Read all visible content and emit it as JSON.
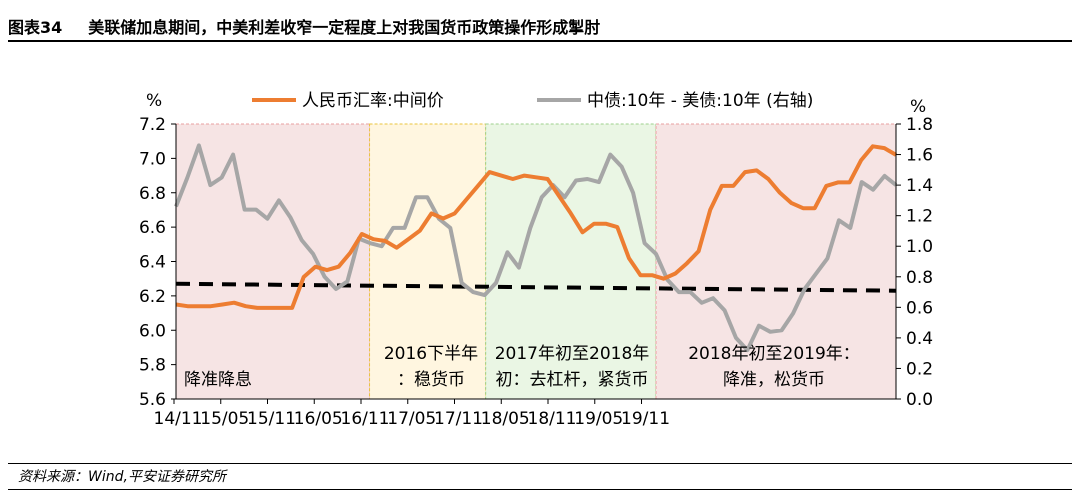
{
  "header": {
    "figure_label": "图表34",
    "title": "美联储加息期间，中美利差收窄一定程度上对我国货币政策操作形成掣肘"
  },
  "source": "资料来源：Wind,平安证券研究所",
  "colors": {
    "cny": "#ED7D31",
    "spread": "#A6A6A6",
    "threshold": "#000000",
    "region_easing": "#F6E4E4",
    "region_neutral": "#FFF6E0",
    "region_tight": "#EAF6E4",
    "border_easing": "#E8A0A0",
    "border_neutral": "#E8C43C",
    "border_tight": "#9ED08C"
  },
  "chart_data": {
    "type": "line",
    "left_unit": "%",
    "right_unit": "%",
    "x_ticks": [
      "14/11",
      "15/05",
      "15/11",
      "16/05",
      "16/11",
      "17/05",
      "17/11",
      "18/05",
      "18/11",
      "19/05",
      "19/11"
    ],
    "ylim_left": [
      5.6,
      7.2
    ],
    "yticks_left": [
      "5.6",
      "5.8",
      "6.0",
      "6.2",
      "6.4",
      "6.6",
      "6.8",
      "7.0",
      "7.2"
    ],
    "ylim_right": [
      0.0,
      1.8
    ],
    "yticks_right": [
      "0.0",
      "0.2",
      "0.4",
      "0.6",
      "0.8",
      "1.0",
      "1.2",
      "1.4",
      "1.6",
      "1.8"
    ],
    "series": [
      {
        "name": "人民币汇率:中间价",
        "axis": "left",
        "values": [
          6.15,
          6.14,
          6.14,
          6.14,
          6.15,
          6.16,
          6.14,
          6.13,
          6.13,
          6.13,
          6.13,
          6.31,
          6.37,
          6.35,
          6.37,
          6.45,
          6.56,
          6.53,
          6.52,
          6.48,
          6.53,
          6.58,
          6.68,
          6.65,
          6.68,
          6.76,
          6.84,
          6.92,
          6.9,
          6.88,
          6.9,
          6.89,
          6.88,
          6.78,
          6.68,
          6.57,
          6.62,
          6.62,
          6.6,
          6.42,
          6.32,
          6.32,
          6.3,
          6.33,
          6.39,
          6.46,
          6.7,
          6.84,
          6.84,
          6.92,
          6.93,
          6.88,
          6.8,
          6.74,
          6.71,
          6.71,
          6.84,
          6.86,
          6.86,
          6.99,
          7.07,
          7.06,
          7.02
        ]
      },
      {
        "name": "中债:10年 - 美债:10年 (右轴)",
        "axis": "right",
        "values": [
          1.26,
          1.45,
          1.66,
          1.4,
          1.45,
          1.6,
          1.24,
          1.24,
          1.18,
          1.3,
          1.19,
          1.04,
          0.95,
          0.8,
          0.72,
          0.77,
          1.05,
          1.02,
          1.0,
          1.12,
          1.12,
          1.32,
          1.32,
          1.18,
          1.12,
          0.76,
          0.7,
          0.68,
          0.76,
          0.96,
          0.86,
          1.12,
          1.32,
          1.4,
          1.32,
          1.43,
          1.44,
          1.42,
          1.6,
          1.52,
          1.35,
          1.02,
          0.95,
          0.78,
          0.7,
          0.7,
          0.63,
          0.66,
          0.58,
          0.4,
          0.32,
          0.48,
          0.44,
          0.45,
          0.56,
          0.72,
          0.82,
          0.92,
          1.17,
          1.12,
          1.42,
          1.37,
          1.46,
          1.4
        ]
      },
      {
        "name": "threshold",
        "axis": "left",
        "values": [
          6.27,
          6.23
        ]
      }
    ],
    "annotations": [
      {
        "text": "降准降息",
        "x_range": [
          0,
          25
        ]
      },
      {
        "text": "2016下半年\n：稳货币",
        "x_range": [
          25,
          40
        ]
      },
      {
        "text": "2017年初至2018年\n初：去杠杆，紧货币",
        "x_range": [
          40,
          62
        ]
      },
      {
        "text": "2018年初至2019年：\n降准，松货币",
        "x_range": [
          62,
          93
        ]
      }
    ],
    "legend_position": "top"
  }
}
